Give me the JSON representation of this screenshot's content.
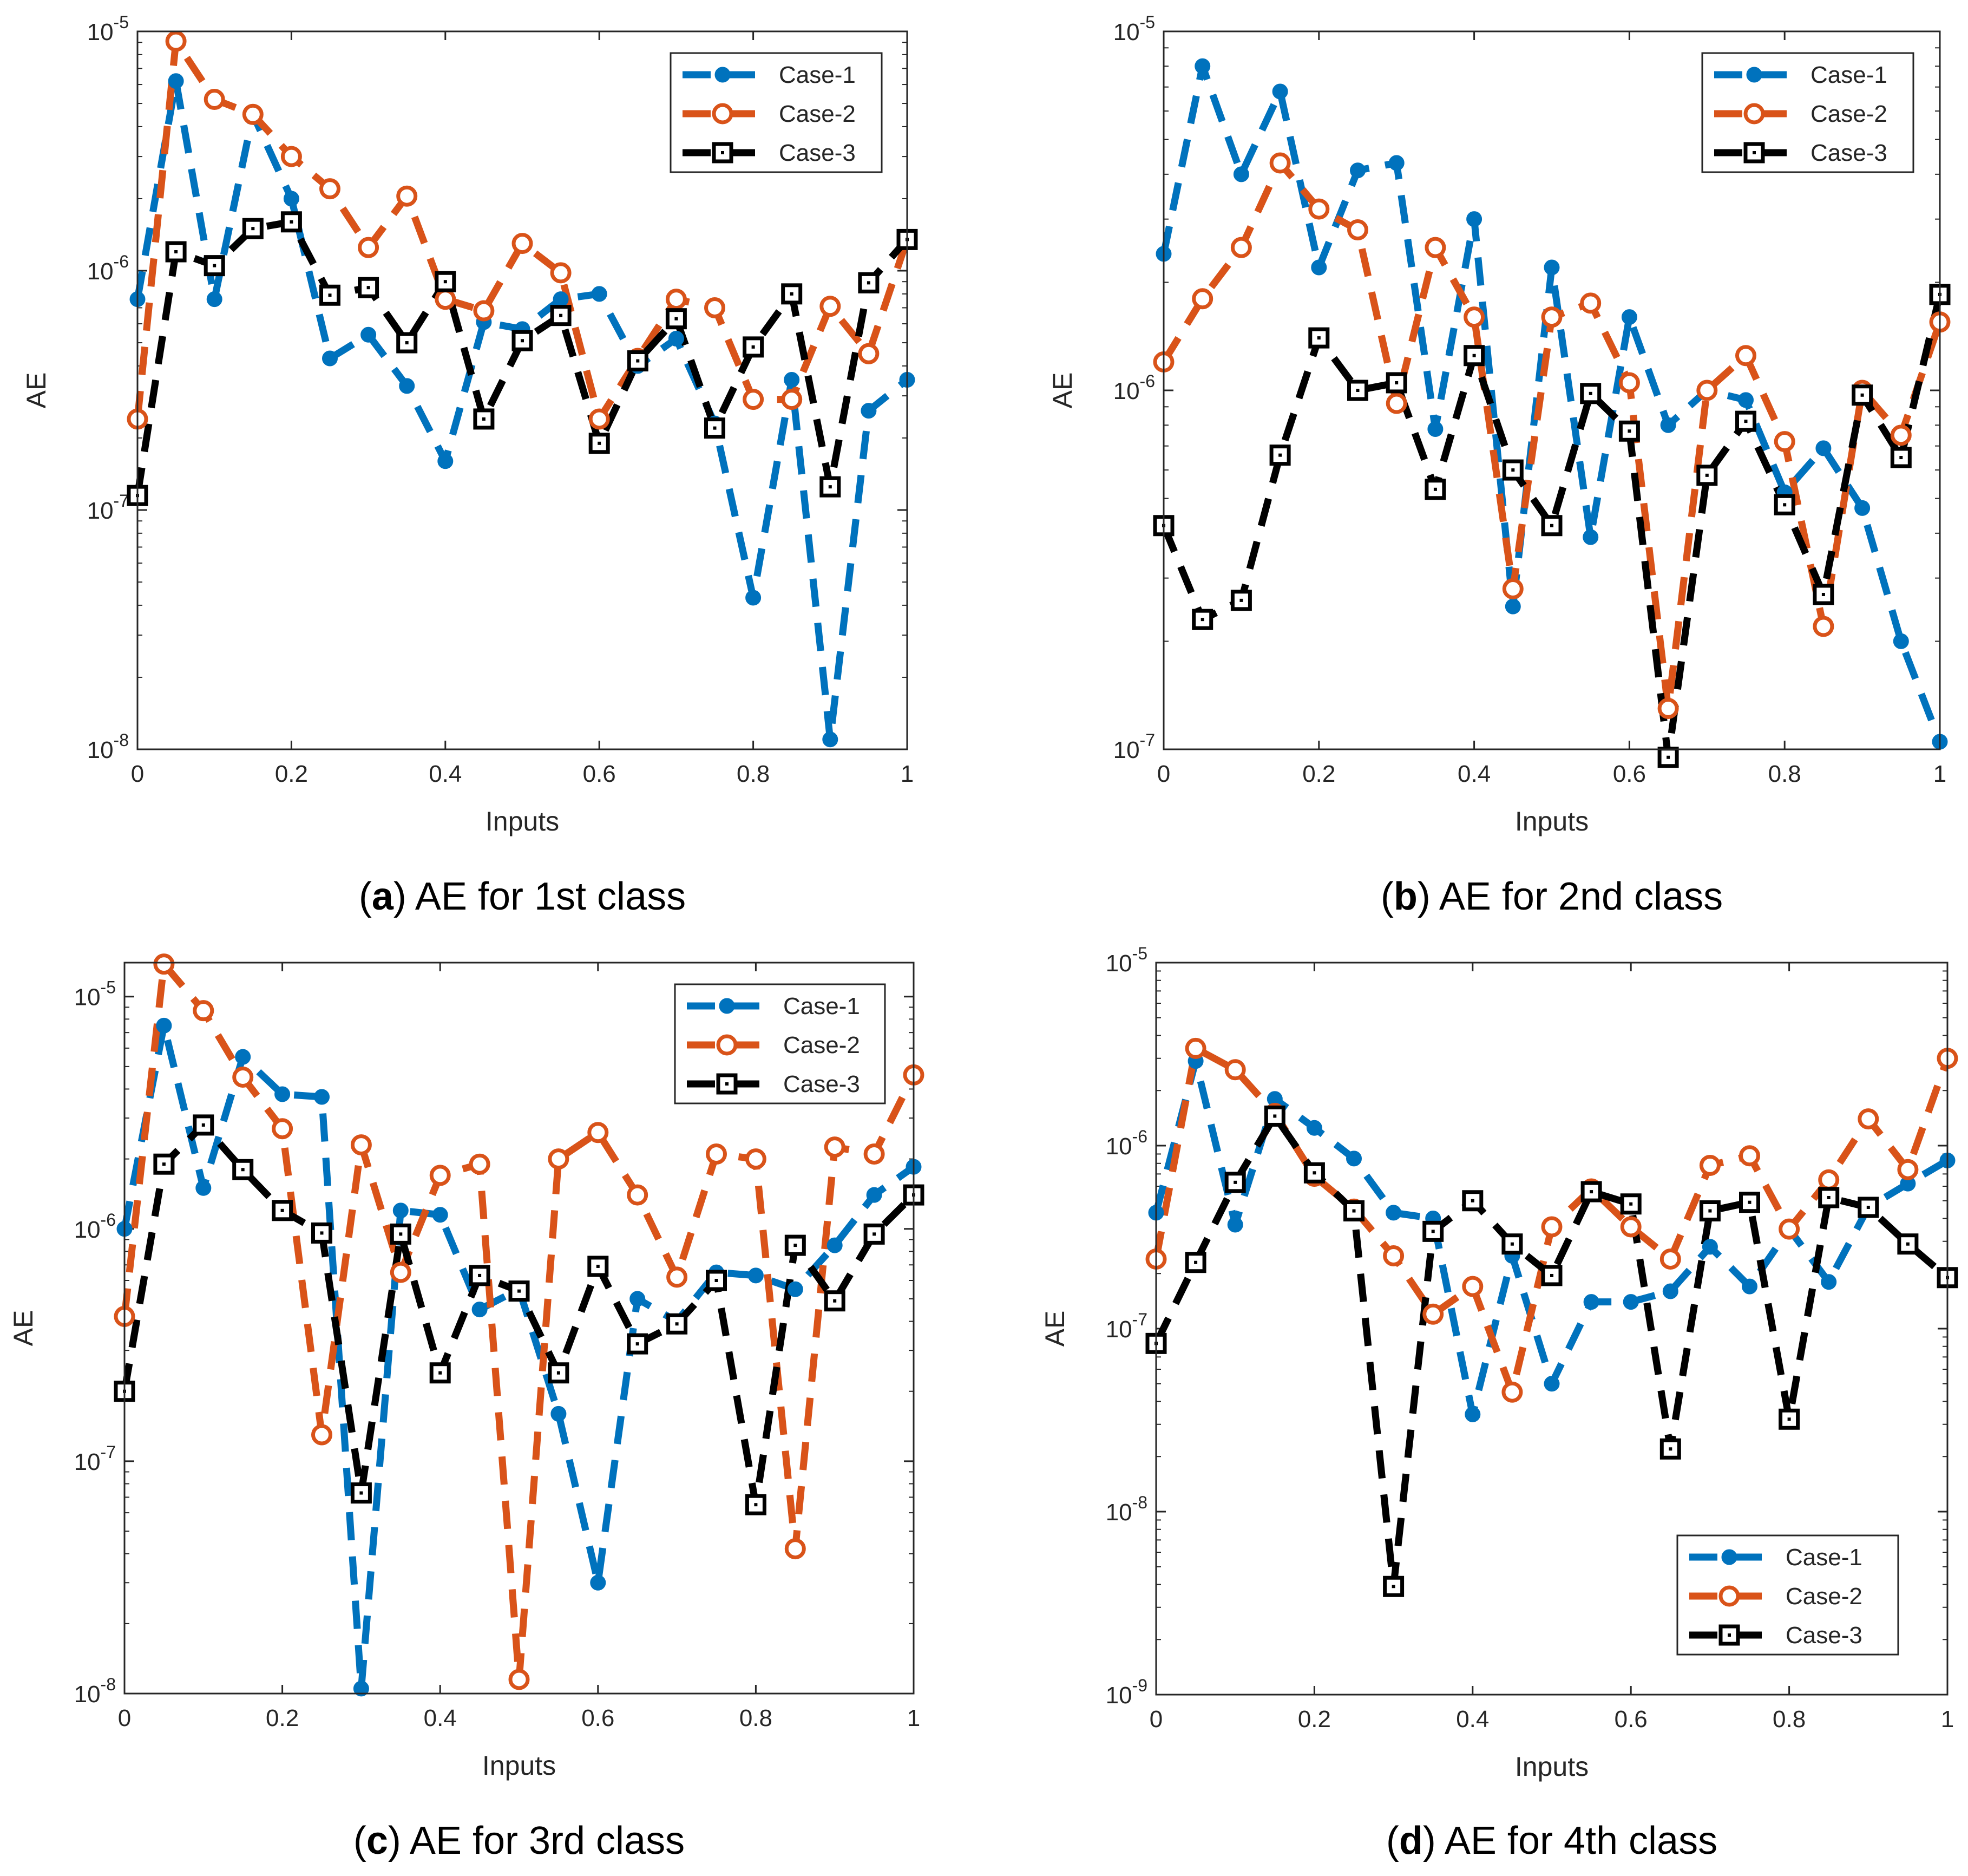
{
  "series_style": [
    {
      "name": "Case-1",
      "color": "#0072BD",
      "marker": "filled-circle"
    },
    {
      "name": "Case-2",
      "color": "#D95319",
      "marker": "open-circle"
    },
    {
      "name": "Case-3",
      "color": "#000000",
      "marker": "open-square"
    }
  ],
  "chart_data": [
    {
      "type": "line",
      "panel_label": "a",
      "caption": "AE for 1st class",
      "xlabel": "Inputs",
      "ylabel": "AE",
      "yscale": "log",
      "xlim": [
        0,
        1
      ],
      "ylim": [
        1e-08,
        1e-05
      ],
      "xticks": [
        "0",
        "0.2",
        "0.4",
        "0.6",
        "0.8",
        "1"
      ],
      "yticks": [
        {
          "base": "10",
          "exp": "-8"
        },
        {
          "base": "10",
          "exp": "-7"
        },
        {
          "base": "10",
          "exp": "-6"
        },
        {
          "base": "10",
          "exp": "-5"
        }
      ],
      "legend_position": "top-right",
      "x": [
        0,
        0.05,
        0.1,
        0.15,
        0.2,
        0.25,
        0.3,
        0.35,
        0.4,
        0.45,
        0.5,
        0.55,
        0.6,
        0.65,
        0.7,
        0.75,
        0.8,
        0.85,
        0.9,
        0.95,
        1
      ],
      "series": [
        {
          "name": "Case-1",
          "values": [
            7.6e-07,
            6.2e-06,
            7.6e-07,
            4.5e-06,
            2e-06,
            4.3e-07,
            5.4e-07,
            3.3e-07,
            1.6e-07,
            6.1e-07,
            5.7e-07,
            7.6e-07,
            8e-07,
            4e-07,
            5.2e-07,
            2.3e-07,
            4.3e-08,
            3.5e-07,
            1.1e-08,
            2.6e-07,
            3.5e-07
          ]
        },
        {
          "name": "Case-2",
          "values": [
            2.4e-07,
            9.1e-06,
            5.2e-06,
            4.5e-06,
            3e-06,
            2.2e-06,
            1.25e-06,
            2.05e-06,
            7.6e-07,
            6.8e-07,
            1.3e-06,
            9.8e-07,
            2.4e-07,
            4.3e-07,
            7.6e-07,
            7e-07,
            2.9e-07,
            2.9e-07,
            7.1e-07,
            4.5e-07,
            1.35e-06
          ]
        },
        {
          "name": "Case-3",
          "values": [
            1.15e-07,
            1.2e-06,
            1.05e-06,
            1.5e-06,
            1.6e-06,
            7.9e-07,
            8.5e-07,
            5e-07,
            9e-07,
            2.4e-07,
            5.1e-07,
            6.5e-07,
            1.9e-07,
            4.2e-07,
            6.3e-07,
            2.2e-07,
            4.8e-07,
            8e-07,
            1.25e-07,
            8.9e-07,
            1.35e-06
          ]
        }
      ]
    },
    {
      "type": "line",
      "panel_label": "b",
      "caption": "AE for 2nd class",
      "xlabel": "Inputs",
      "ylabel": "AE",
      "yscale": "log",
      "xlim": [
        0,
        1
      ],
      "ylim": [
        1e-07,
        1e-05
      ],
      "xticks": [
        "0",
        "0.2",
        "0.4",
        "0.6",
        "0.8",
        "1"
      ],
      "yticks": [
        {
          "base": "10",
          "exp": "-7"
        },
        {
          "base": "10",
          "exp": "-6"
        },
        {
          "base": "10",
          "exp": "-5"
        }
      ],
      "legend_position": "top-right",
      "x": [
        0,
        0.05,
        0.1,
        0.15,
        0.2,
        0.25,
        0.3,
        0.35,
        0.4,
        0.45,
        0.5,
        0.55,
        0.6,
        0.65,
        0.7,
        0.75,
        0.8,
        0.85,
        0.9,
        0.95,
        1
      ],
      "series": [
        {
          "name": "Case-1",
          "values": [
            2.4e-06,
            8e-06,
            4e-06,
            6.8e-06,
            2.2e-06,
            4.1e-06,
            4.3e-06,
            7.8e-07,
            3e-06,
            2.5e-07,
            2.2e-06,
            3.9e-07,
            1.6e-06,
            8e-07,
            1e-06,
            9.4e-07,
            5.2e-07,
            6.9e-07,
            4.7e-07,
            2e-07,
            1.05e-07
          ]
        },
        {
          "name": "Case-2",
          "values": [
            1.2e-06,
            1.8e-06,
            2.5e-06,
            4.3e-06,
            3.2e-06,
            2.8e-06,
            9.2e-07,
            2.5e-06,
            1.6e-06,
            2.8e-07,
            1.6e-06,
            1.75e-06,
            1.05e-06,
            1.3e-07,
            1e-06,
            1.25e-06,
            7.2e-07,
            2.2e-07,
            1e-06,
            7.5e-07,
            1.55e-06
          ]
        },
        {
          "name": "Case-3",
          "values": [
            4.2e-07,
            2.3e-07,
            2.6e-07,
            6.6e-07,
            1.4e-06,
            1e-06,
            1.05e-06,
            5.3e-07,
            1.25e-06,
            6e-07,
            4.2e-07,
            9.8e-07,
            7.7e-07,
            9.5e-08,
            5.8e-07,
            8.2e-07,
            4.8e-07,
            2.7e-07,
            9.7e-07,
            6.5e-07,
            1.85e-06
          ]
        }
      ]
    },
    {
      "type": "line",
      "panel_label": "c",
      "caption": "AE for 3rd class",
      "xlabel": "Inputs",
      "ylabel": "AE",
      "yscale": "log",
      "xlim": [
        0,
        1
      ],
      "ylim": [
        1e-08,
        1.4e-05
      ],
      "xticks": [
        "0",
        "0.2",
        "0.4",
        "0.6",
        "0.8",
        "1"
      ],
      "yticks": [
        {
          "base": "10",
          "exp": "-8"
        },
        {
          "base": "10",
          "exp": "-7"
        },
        {
          "base": "10",
          "exp": "-6"
        },
        {
          "base": "10",
          "exp": "-5"
        }
      ],
      "legend_position": "top-right",
      "x": [
        0,
        0.05,
        0.1,
        0.15,
        0.2,
        0.25,
        0.3,
        0.35,
        0.4,
        0.45,
        0.5,
        0.55,
        0.6,
        0.65,
        0.7,
        0.75,
        0.8,
        0.85,
        0.9,
        0.95,
        1
      ],
      "series": [
        {
          "name": "Case-1",
          "values": [
            1e-06,
            7.5e-06,
            1.5e-06,
            5.5e-06,
            3.8e-06,
            3.7e-06,
            1.05e-08,
            1.2e-06,
            1.15e-06,
            4.5e-07,
            5.5e-07,
            1.6e-07,
            3e-08,
            5e-07,
            4e-07,
            6.5e-07,
            6.3e-07,
            5.5e-07,
            8.5e-07,
            1.4e-06,
            1.85e-06
          ]
        },
        {
          "name": "Case-2",
          "values": [
            4.2e-07,
            1.38e-05,
            8.7e-06,
            4.5e-06,
            2.7e-06,
            1.3e-07,
            2.3e-06,
            6.5e-07,
            1.7e-06,
            1.9e-06,
            1.15e-08,
            2e-06,
            2.6e-06,
            1.4e-06,
            6.2e-07,
            2.1e-06,
            2e-06,
            4.2e-08,
            2.25e-06,
            2.1e-06,
            4.6e-06
          ]
        },
        {
          "name": "Case-3",
          "values": [
            2e-07,
            1.9e-06,
            2.8e-06,
            1.8e-06,
            1.2e-06,
            9.6e-07,
            7.3e-08,
            9.5e-07,
            2.4e-07,
            6.3e-07,
            5.4e-07,
            2.4e-07,
            6.9e-07,
            3.2e-07,
            3.9e-07,
            6e-07,
            6.5e-08,
            8.5e-07,
            4.9e-07,
            9.5e-07,
            1.4e-06
          ]
        }
      ]
    },
    {
      "type": "line",
      "panel_label": "d",
      "caption": "AE for 4th class",
      "xlabel": "Inputs",
      "ylabel": "AE",
      "yscale": "log",
      "xlim": [
        0,
        1
      ],
      "ylim": [
        1e-09,
        1e-05
      ],
      "xticks": [
        "0",
        "0.2",
        "0.4",
        "0.6",
        "0.8",
        "1"
      ],
      "yticks": [
        {
          "base": "10",
          "exp": "-9"
        },
        {
          "base": "10",
          "exp": "-8"
        },
        {
          "base": "10",
          "exp": "-7"
        },
        {
          "base": "10",
          "exp": "-6"
        },
        {
          "base": "10",
          "exp": "-5"
        }
      ],
      "legend_position": "bottom-right",
      "x": [
        0,
        0.05,
        0.1,
        0.15,
        0.2,
        0.25,
        0.3,
        0.35,
        0.4,
        0.45,
        0.5,
        0.55,
        0.6,
        0.65,
        0.7,
        0.75,
        0.8,
        0.85,
        0.9,
        0.95,
        1
      ],
      "series": [
        {
          "name": "Case-1",
          "values": [
            4.3e-07,
            2.9e-06,
            3.7e-07,
            1.8e-06,
            1.25e-06,
            8.5e-07,
            4.3e-07,
            4e-07,
            3.4e-08,
            2.5e-07,
            5e-08,
            1.4e-07,
            1.4e-07,
            1.6e-07,
            2.8e-07,
            1.7e-07,
            3.5e-07,
            1.8e-07,
            4.6e-07,
            6.2e-07,
            8.3e-07
          ]
        },
        {
          "name": "Case-2",
          "values": [
            2.4e-07,
            3.4e-06,
            2.6e-06,
            1.5e-06,
            6.8e-07,
            4.5e-07,
            2.5e-07,
            1.2e-07,
            1.7e-07,
            4.5e-08,
            3.6e-07,
            5.8e-07,
            3.6e-07,
            2.4e-07,
            7.8e-07,
            8.8e-07,
            3.5e-07,
            6.5e-07,
            1.4e-06,
            7.4e-07,
            3e-06
          ]
        },
        {
          "name": "Case-3",
          "values": [
            8.3e-08,
            2.3e-07,
            6.3e-07,
            1.45e-06,
            7.1e-07,
            4.4e-07,
            3.9e-09,
            3.4e-07,
            5e-07,
            2.9e-07,
            1.95e-07,
            5.6e-07,
            4.8e-07,
            2.2e-08,
            4.4e-07,
            4.9e-07,
            3.2e-08,
            5.2e-07,
            4.6e-07,
            2.9e-07,
            1.9e-07
          ]
        }
      ]
    }
  ]
}
